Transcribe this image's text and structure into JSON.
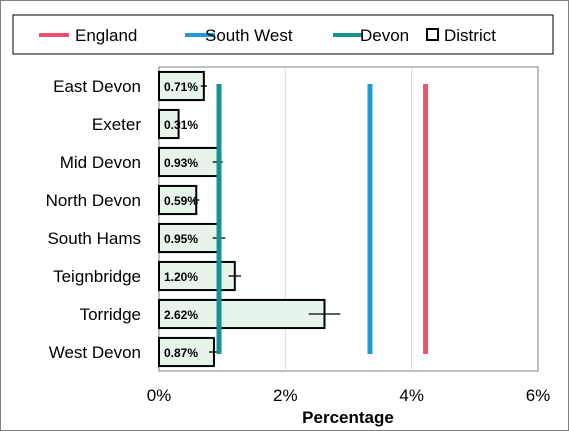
{
  "chart_data": {
    "type": "bar",
    "orientation": "horizontal",
    "categories": [
      "East Devon",
      "Exeter",
      "Mid Devon",
      "North Devon",
      "South Hams",
      "Teignbridge",
      "Torridge",
      "West Devon"
    ],
    "series": [
      {
        "name": "District",
        "values": [
          0.71,
          0.31,
          0.93,
          0.59,
          0.95,
          1.2,
          2.62,
          0.87
        ],
        "data_labels": [
          "0.71%",
          "0.31%",
          "0.93%",
          "0.59%",
          "0.95%",
          "1.20%",
          "2.62%",
          "0.87%"
        ],
        "error_half_width": [
          0.05,
          0.03,
          0.08,
          0.05,
          0.1,
          0.1,
          0.25,
          0.08
        ],
        "color": "#e6f4ea"
      }
    ],
    "reference_lines": [
      {
        "name": "England",
        "value": 4.22,
        "color": "#f1506f"
      },
      {
        "name": "South West",
        "value": 3.34,
        "color": "#1f9ad6"
      },
      {
        "name": "Devon",
        "value": 0.95,
        "color": "#149294"
      }
    ],
    "legend": [
      {
        "label": "England",
        "symbol": "line",
        "color": "#f1506f"
      },
      {
        "label": "South West",
        "symbol": "line",
        "color": "#1f9ad6"
      },
      {
        "label": "Devon",
        "symbol": "line",
        "color": "#149294"
      },
      {
        "label": "District",
        "symbol": "box",
        "color": "#000000"
      }
    ],
    "legend_position": "top",
    "xlabel": "Percentage",
    "ylabel": "",
    "title": "",
    "xlim": [
      0,
      6
    ],
    "xticks": [
      0,
      2,
      4,
      6
    ],
    "xtick_labels": [
      "0%",
      "2%",
      "4%",
      "6%"
    ],
    "grid": "vertical"
  }
}
